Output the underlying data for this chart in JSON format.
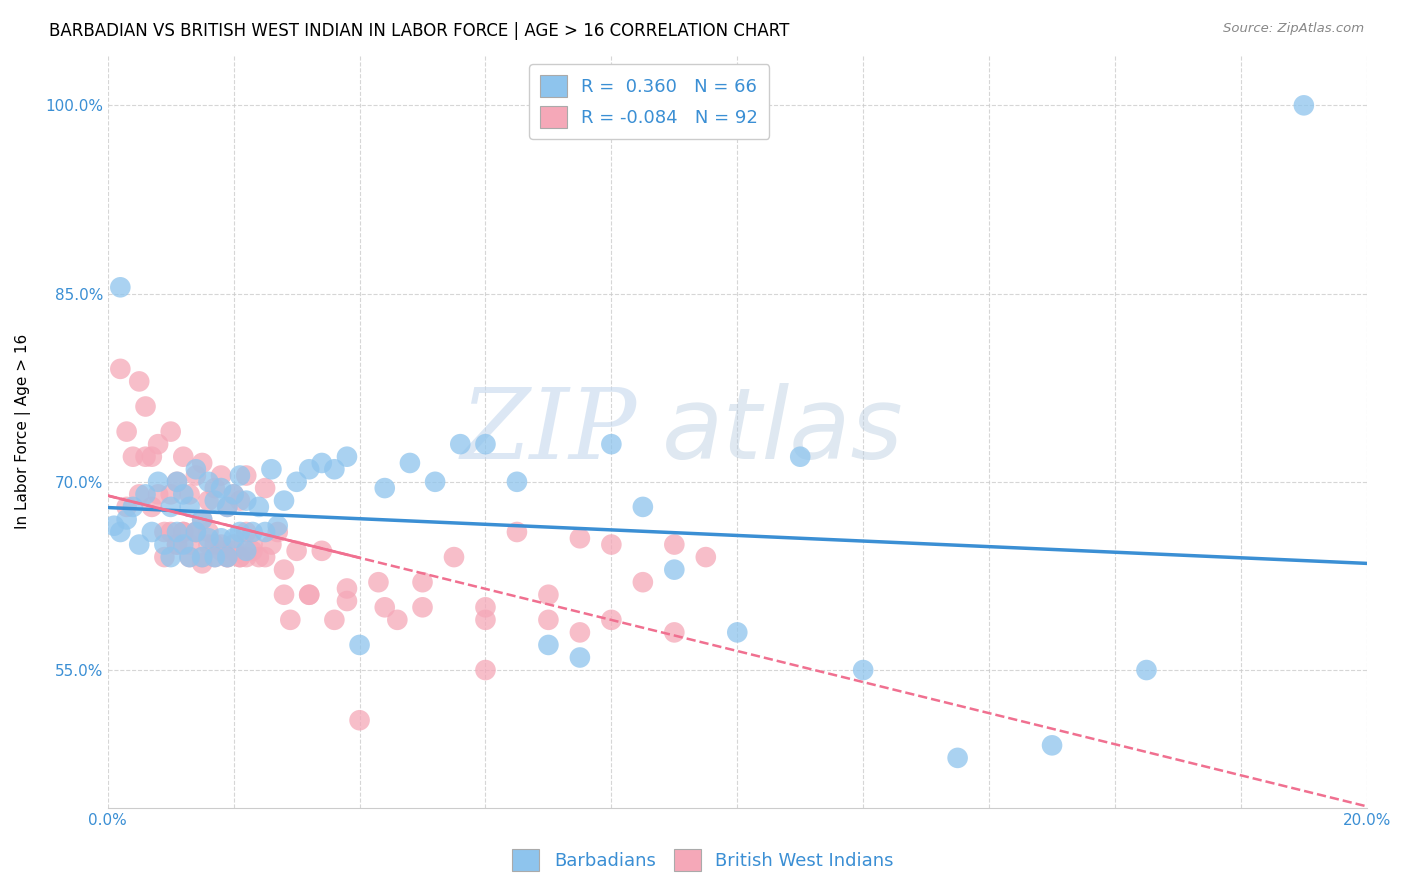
{
  "title": "BARBADIAN VS BRITISH WEST INDIAN IN LABOR FORCE | AGE > 16 CORRELATION CHART",
  "source": "Source: ZipAtlas.com",
  "ylabel": "In Labor Force | Age > 16",
  "xlim": [
    0.0,
    0.2
  ],
  "ylim": [
    0.44,
    1.04
  ],
  "yticks": [
    0.55,
    0.7,
    0.85,
    1.0
  ],
  "ytick_labels": [
    "55.0%",
    "70.0%",
    "85.0%",
    "100.0%"
  ],
  "xticks": [
    0.0,
    0.02,
    0.04,
    0.06,
    0.08,
    0.1,
    0.12,
    0.14,
    0.16,
    0.18,
    0.2
  ],
  "xtick_labels": [
    "0.0%",
    "",
    "",
    "",
    "",
    "",
    "",
    "",
    "",
    "",
    "20.0%"
  ],
  "blue_R": 0.36,
  "blue_N": 66,
  "pink_R": -0.084,
  "pink_N": 92,
  "blue_color": "#8EC4ED",
  "pink_color": "#F5A8B8",
  "blue_line_color": "#3B8FD4",
  "pink_line_color": "#F07090",
  "blue_scatter_x": [
    0.001,
    0.002,
    0.003,
    0.004,
    0.005,
    0.006,
    0.007,
    0.008,
    0.009,
    0.01,
    0.01,
    0.011,
    0.011,
    0.012,
    0.012,
    0.013,
    0.013,
    0.014,
    0.014,
    0.015,
    0.015,
    0.016,
    0.016,
    0.017,
    0.017,
    0.018,
    0.018,
    0.019,
    0.019,
    0.02,
    0.02,
    0.021,
    0.021,
    0.022,
    0.022,
    0.023,
    0.024,
    0.025,
    0.026,
    0.027,
    0.028,
    0.03,
    0.032,
    0.034,
    0.036,
    0.038,
    0.04,
    0.044,
    0.048,
    0.052,
    0.056,
    0.06,
    0.065,
    0.07,
    0.075,
    0.08,
    0.085,
    0.09,
    0.1,
    0.11,
    0.12,
    0.135,
    0.15,
    0.165,
    0.002,
    0.19
  ],
  "blue_scatter_y": [
    0.665,
    0.66,
    0.67,
    0.68,
    0.65,
    0.69,
    0.66,
    0.7,
    0.65,
    0.68,
    0.64,
    0.66,
    0.7,
    0.65,
    0.69,
    0.64,
    0.68,
    0.66,
    0.71,
    0.64,
    0.67,
    0.655,
    0.7,
    0.64,
    0.685,
    0.655,
    0.695,
    0.64,
    0.68,
    0.655,
    0.69,
    0.66,
    0.705,
    0.645,
    0.685,
    0.66,
    0.68,
    0.66,
    0.71,
    0.665,
    0.685,
    0.7,
    0.71,
    0.715,
    0.71,
    0.72,
    0.57,
    0.695,
    0.715,
    0.7,
    0.73,
    0.73,
    0.7,
    0.57,
    0.56,
    0.73,
    0.68,
    0.63,
    0.58,
    0.72,
    0.55,
    0.48,
    0.49,
    0.55,
    0.855,
    1.0
  ],
  "pink_scatter_x": [
    0.002,
    0.003,
    0.004,
    0.005,
    0.006,
    0.007,
    0.008,
    0.009,
    0.01,
    0.01,
    0.011,
    0.011,
    0.012,
    0.012,
    0.013,
    0.013,
    0.014,
    0.014,
    0.015,
    0.015,
    0.015,
    0.016,
    0.016,
    0.017,
    0.017,
    0.018,
    0.018,
    0.019,
    0.019,
    0.02,
    0.02,
    0.021,
    0.021,
    0.022,
    0.022,
    0.023,
    0.024,
    0.025,
    0.026,
    0.027,
    0.028,
    0.029,
    0.03,
    0.032,
    0.034,
    0.036,
    0.038,
    0.04,
    0.043,
    0.046,
    0.05,
    0.055,
    0.06,
    0.065,
    0.07,
    0.075,
    0.08,
    0.085,
    0.09,
    0.095,
    0.003,
    0.005,
    0.006,
    0.007,
    0.008,
    0.009,
    0.01,
    0.011,
    0.012,
    0.013,
    0.014,
    0.015,
    0.016,
    0.017,
    0.018,
    0.019,
    0.02,
    0.021,
    0.022,
    0.023,
    0.025,
    0.028,
    0.032,
    0.038,
    0.044,
    0.05,
    0.06,
    0.07,
    0.08,
    0.09,
    0.06,
    0.075
  ],
  "pink_scatter_y": [
    0.79,
    0.74,
    0.72,
    0.78,
    0.76,
    0.72,
    0.73,
    0.66,
    0.69,
    0.74,
    0.65,
    0.7,
    0.66,
    0.72,
    0.65,
    0.69,
    0.66,
    0.705,
    0.635,
    0.67,
    0.715,
    0.65,
    0.685,
    0.64,
    0.695,
    0.645,
    0.705,
    0.64,
    0.68,
    0.645,
    0.69,
    0.64,
    0.685,
    0.64,
    0.705,
    0.65,
    0.64,
    0.695,
    0.65,
    0.66,
    0.63,
    0.59,
    0.645,
    0.61,
    0.645,
    0.59,
    0.615,
    0.51,
    0.62,
    0.59,
    0.62,
    0.64,
    0.6,
    0.66,
    0.61,
    0.655,
    0.65,
    0.62,
    0.65,
    0.64,
    0.68,
    0.69,
    0.72,
    0.68,
    0.69,
    0.64,
    0.66,
    0.65,
    0.66,
    0.64,
    0.66,
    0.64,
    0.66,
    0.65,
    0.65,
    0.64,
    0.65,
    0.64,
    0.66,
    0.645,
    0.64,
    0.61,
    0.61,
    0.605,
    0.6,
    0.6,
    0.59,
    0.59,
    0.59,
    0.58,
    0.55,
    0.58
  ],
  "watermark_zip": "ZIP",
  "watermark_atlas": "atlas",
  "legend_text_color": "#3B8FD4",
  "grid_color": "#CCCCCC",
  "title_fontsize": 12,
  "axis_label_fontsize": 11,
  "tick_fontsize": 11,
  "legend_fontsize": 13
}
